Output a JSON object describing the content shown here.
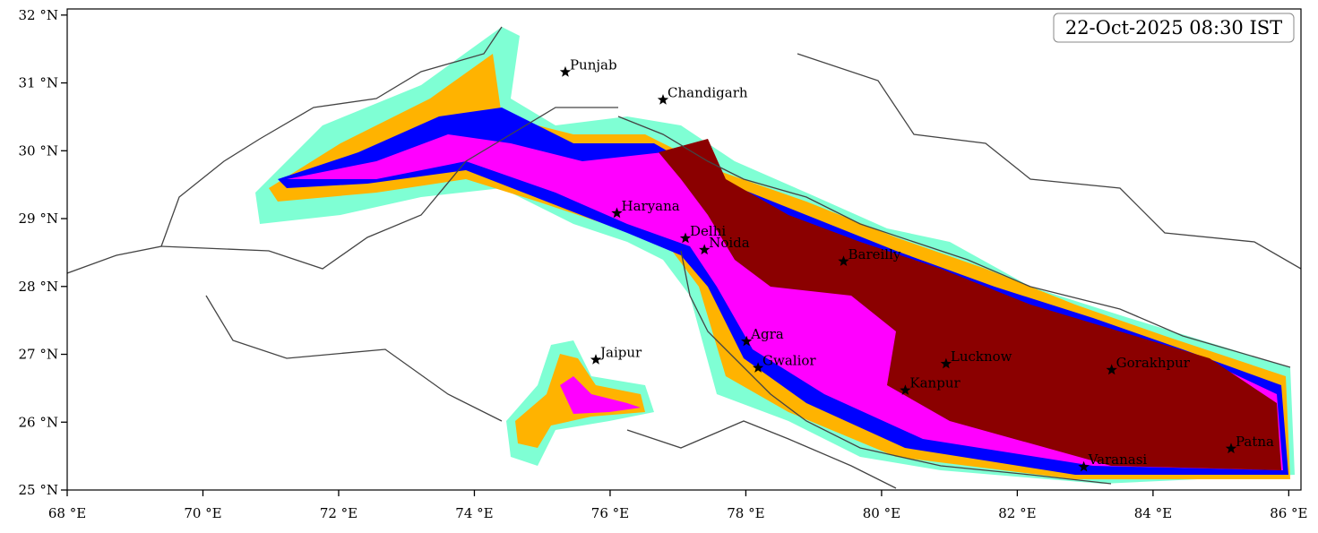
{
  "chart_data": {
    "type": "map",
    "title": "22-Oct-2025 08:30 IST",
    "xlim": [
      68,
      86.18
    ],
    "ylim": [
      25,
      32.09
    ],
    "xticks": [
      {
        "value": 68,
        "label": "68 °E"
      },
      {
        "value": 70,
        "label": "70 °E"
      },
      {
        "value": 72,
        "label": "72 °E"
      },
      {
        "value": 74,
        "label": "74 °E"
      },
      {
        "value": 76,
        "label": "76 °E"
      },
      {
        "value": 78,
        "label": "78 °E"
      },
      {
        "value": 80,
        "label": "80 °E"
      },
      {
        "value": 82,
        "label": "82 °E"
      },
      {
        "value": 84,
        "label": "84 °E"
      },
      {
        "value": 86,
        "label": "86 °E"
      }
    ],
    "yticks": [
      {
        "value": 25,
        "label": "25 °N"
      },
      {
        "value": 26,
        "label": "26 °N"
      },
      {
        "value": 27,
        "label": "27 °N"
      },
      {
        "value": 28,
        "label": "28 °N"
      },
      {
        "value": 29,
        "label": "29 °N"
      },
      {
        "value": 30,
        "label": "30 °N"
      },
      {
        "value": 31,
        "label": "31 °N"
      },
      {
        "value": 32,
        "label": "32 °N"
      }
    ],
    "points": {
      "names": [
        "Punjab",
        "Chandigarh",
        "Haryana",
        "Delhi",
        "Noida",
        "Bareilly",
        "Agra",
        "Jaipur",
        "Gwalior",
        "Lucknow",
        "Kanpur",
        "Gorakhpur",
        "Varanasi",
        "Patna"
      ],
      "x": [
        75.34,
        76.78,
        76.1,
        77.11,
        77.39,
        79.44,
        78.01,
        75.79,
        78.18,
        80.95,
        80.35,
        83.39,
        82.98,
        85.15
      ],
      "y": [
        31.16,
        30.75,
        29.08,
        28.71,
        28.54,
        28.37,
        27.19,
        26.92,
        26.8,
        26.86,
        26.47,
        26.77,
        25.34,
        25.61
      ],
      "color": "#000000"
    }
  }
}
